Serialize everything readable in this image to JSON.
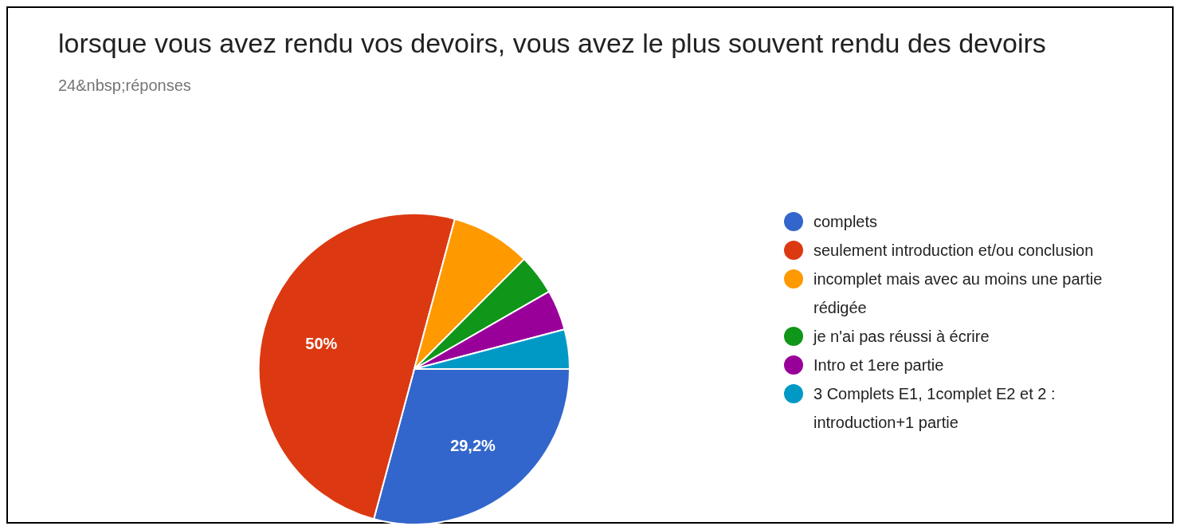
{
  "chart_data": {
    "type": "pie",
    "title": "lorsque vous avez rendu vos devoirs, vous avez le plus souvent rendu des devoirs",
    "subtitle": "24&nbsp;réponses",
    "categories": [
      "complets",
      "seulement introduction et/ou conclusion",
      "incomplet mais avec au moins une partie rédigée",
      "je n'ai pas réussi à écrire",
      "Intro et 1ere partie",
      "3 Complets E1, 1complet E2 et 2 : introduction+1 partie"
    ],
    "values": [
      29.2,
      50,
      8.3,
      4.2,
      4.2,
      4.1
    ],
    "colors": [
      "#3366cc",
      "#dc3912",
      "#ff9900",
      "#109618",
      "#990099",
      "#0099c6"
    ],
    "value_labels": [
      "29,2%",
      "50%",
      null,
      null,
      null,
      null
    ],
    "legend": "right"
  }
}
